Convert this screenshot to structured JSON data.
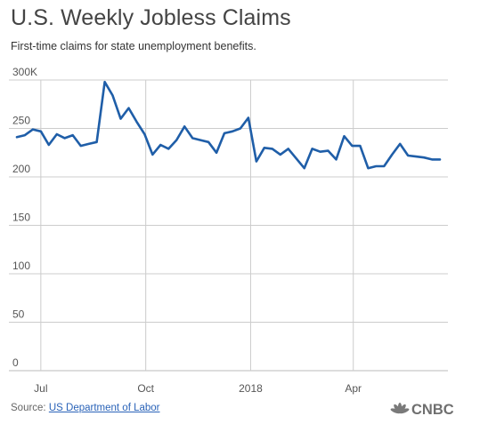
{
  "header": {
    "title": "U.S. Weekly Jobless Claims",
    "subtitle": "First-time claims for state unemployment benefits."
  },
  "footer": {
    "source_prefix": "Source:",
    "source_link": "US Department of Labor",
    "brand": "CNBC"
  },
  "colors": {
    "line": "#1f5ea8",
    "grid": "#cccccc",
    "axis_text": "#555555",
    "brand_text": "#6f6f6f"
  },
  "chart_data": {
    "type": "line",
    "title": "U.S. Weekly Jobless Claims",
    "subtitle": "First-time claims for state unemployment benefits.",
    "xlabel": "",
    "ylabel": "",
    "y_tick_labels": [
      "0",
      "50",
      "100",
      "150",
      "200",
      "250",
      "300K"
    ],
    "y_ticks": [
      0,
      50,
      100,
      150,
      200,
      250,
      300
    ],
    "ylim": [
      0,
      300
    ],
    "x_tick_labels": [
      "Jul",
      "Oct",
      "2018",
      "Apr"
    ],
    "x_ticks": [
      "2017-07-01",
      "2017-10-01",
      "2018-01-01",
      "2018-04-01"
    ],
    "xlim": [
      "2017-06-03",
      "2018-06-23"
    ],
    "grid": "horizontal",
    "legend": "none",
    "series": [
      {
        "name": "",
        "x": [
          "2017-06-10",
          "2017-06-17",
          "2017-06-24",
          "2017-07-01",
          "2017-07-08",
          "2017-07-15",
          "2017-07-22",
          "2017-07-29",
          "2017-08-05",
          "2017-08-12",
          "2017-08-19",
          "2017-08-26",
          "2017-09-02",
          "2017-09-09",
          "2017-09-16",
          "2017-09-23",
          "2017-09-30",
          "2017-10-07",
          "2017-10-14",
          "2017-10-21",
          "2017-10-28",
          "2017-11-04",
          "2017-11-11",
          "2017-11-18",
          "2017-11-25",
          "2017-12-02",
          "2017-12-09",
          "2017-12-16",
          "2017-12-23",
          "2017-12-30",
          "2018-01-06",
          "2018-01-13",
          "2018-01-20",
          "2018-01-27",
          "2018-02-03",
          "2018-02-10",
          "2018-02-17",
          "2018-02-24",
          "2018-03-03",
          "2018-03-10",
          "2018-03-17",
          "2018-03-24",
          "2018-03-31",
          "2018-04-07",
          "2018-04-14",
          "2018-04-21",
          "2018-04-28",
          "2018-05-05",
          "2018-05-12",
          "2018-05-19",
          "2018-05-26",
          "2018-06-02",
          "2018-06-09",
          "2018-06-16"
        ],
        "values": [
          241,
          243,
          249,
          247,
          233,
          244,
          240,
          243,
          232,
          234,
          236,
          298,
          284,
          260,
          271,
          257,
          244,
          223,
          233,
          229,
          238,
          252,
          240,
          238,
          236,
          225,
          245,
          247,
          250,
          261,
          216,
          230,
          229,
          223,
          229,
          219,
          209,
          229,
          226,
          227,
          218,
          242,
          232,
          232,
          209,
          211,
          211,
          223,
          234,
          222,
          221,
          220,
          218,
          218
        ]
      }
    ]
  }
}
